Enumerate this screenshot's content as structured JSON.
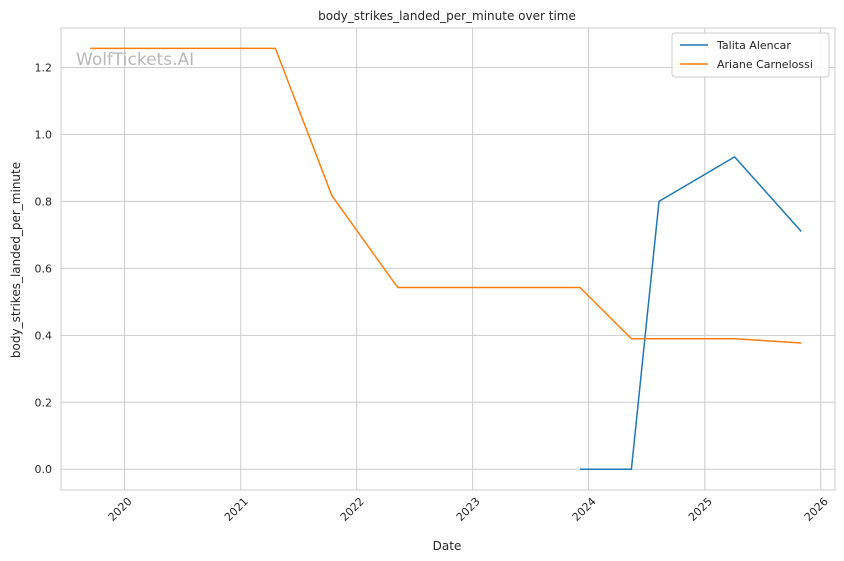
{
  "chart_data": {
    "type": "line",
    "title": "body_strikes_landed_per_minute over time",
    "xlabel": "Date",
    "ylabel": "body_strikes_landed_per_minute",
    "watermark": "WolfTickets.AI",
    "xlim": [
      "2019-06-15",
      "2026-02-15"
    ],
    "ylim": [
      -0.062,
      1.318
    ],
    "x_ticks": [
      "2020",
      "2021",
      "2022",
      "2023",
      "2024",
      "2025",
      "2026"
    ],
    "y_ticks": [
      "0.0",
      "0.2",
      "0.4",
      "0.6",
      "0.8",
      "1.0",
      "1.2"
    ],
    "grid": true,
    "legend_position": "top-right",
    "series": [
      {
        "name": "Talita Alencar",
        "color": "#1f77b4",
        "points": [
          {
            "x": "2023-12-05",
            "y": 0.0
          },
          {
            "x": "2024-05-15",
            "y": 0.0
          },
          {
            "x": "2024-08-10",
            "y": 0.8
          },
          {
            "x": "2025-04-05",
            "y": 0.933
          },
          {
            "x": "2025-11-01",
            "y": 0.71
          }
        ]
      },
      {
        "name": "Ariane Carnelossi",
        "color": "#ff7f0e",
        "points": [
          {
            "x": "2019-09-15",
            "y": 1.257
          },
          {
            "x": "2021-04-20",
            "y": 1.257
          },
          {
            "x": "2021-10-15",
            "y": 0.817
          },
          {
            "x": "2022-05-10",
            "y": 0.543
          },
          {
            "x": "2023-12-05",
            "y": 0.543
          },
          {
            "x": "2024-05-15",
            "y": 0.39
          },
          {
            "x": "2025-04-05",
            "y": 0.39
          },
          {
            "x": "2025-11-01",
            "y": 0.377
          }
        ]
      }
    ]
  }
}
